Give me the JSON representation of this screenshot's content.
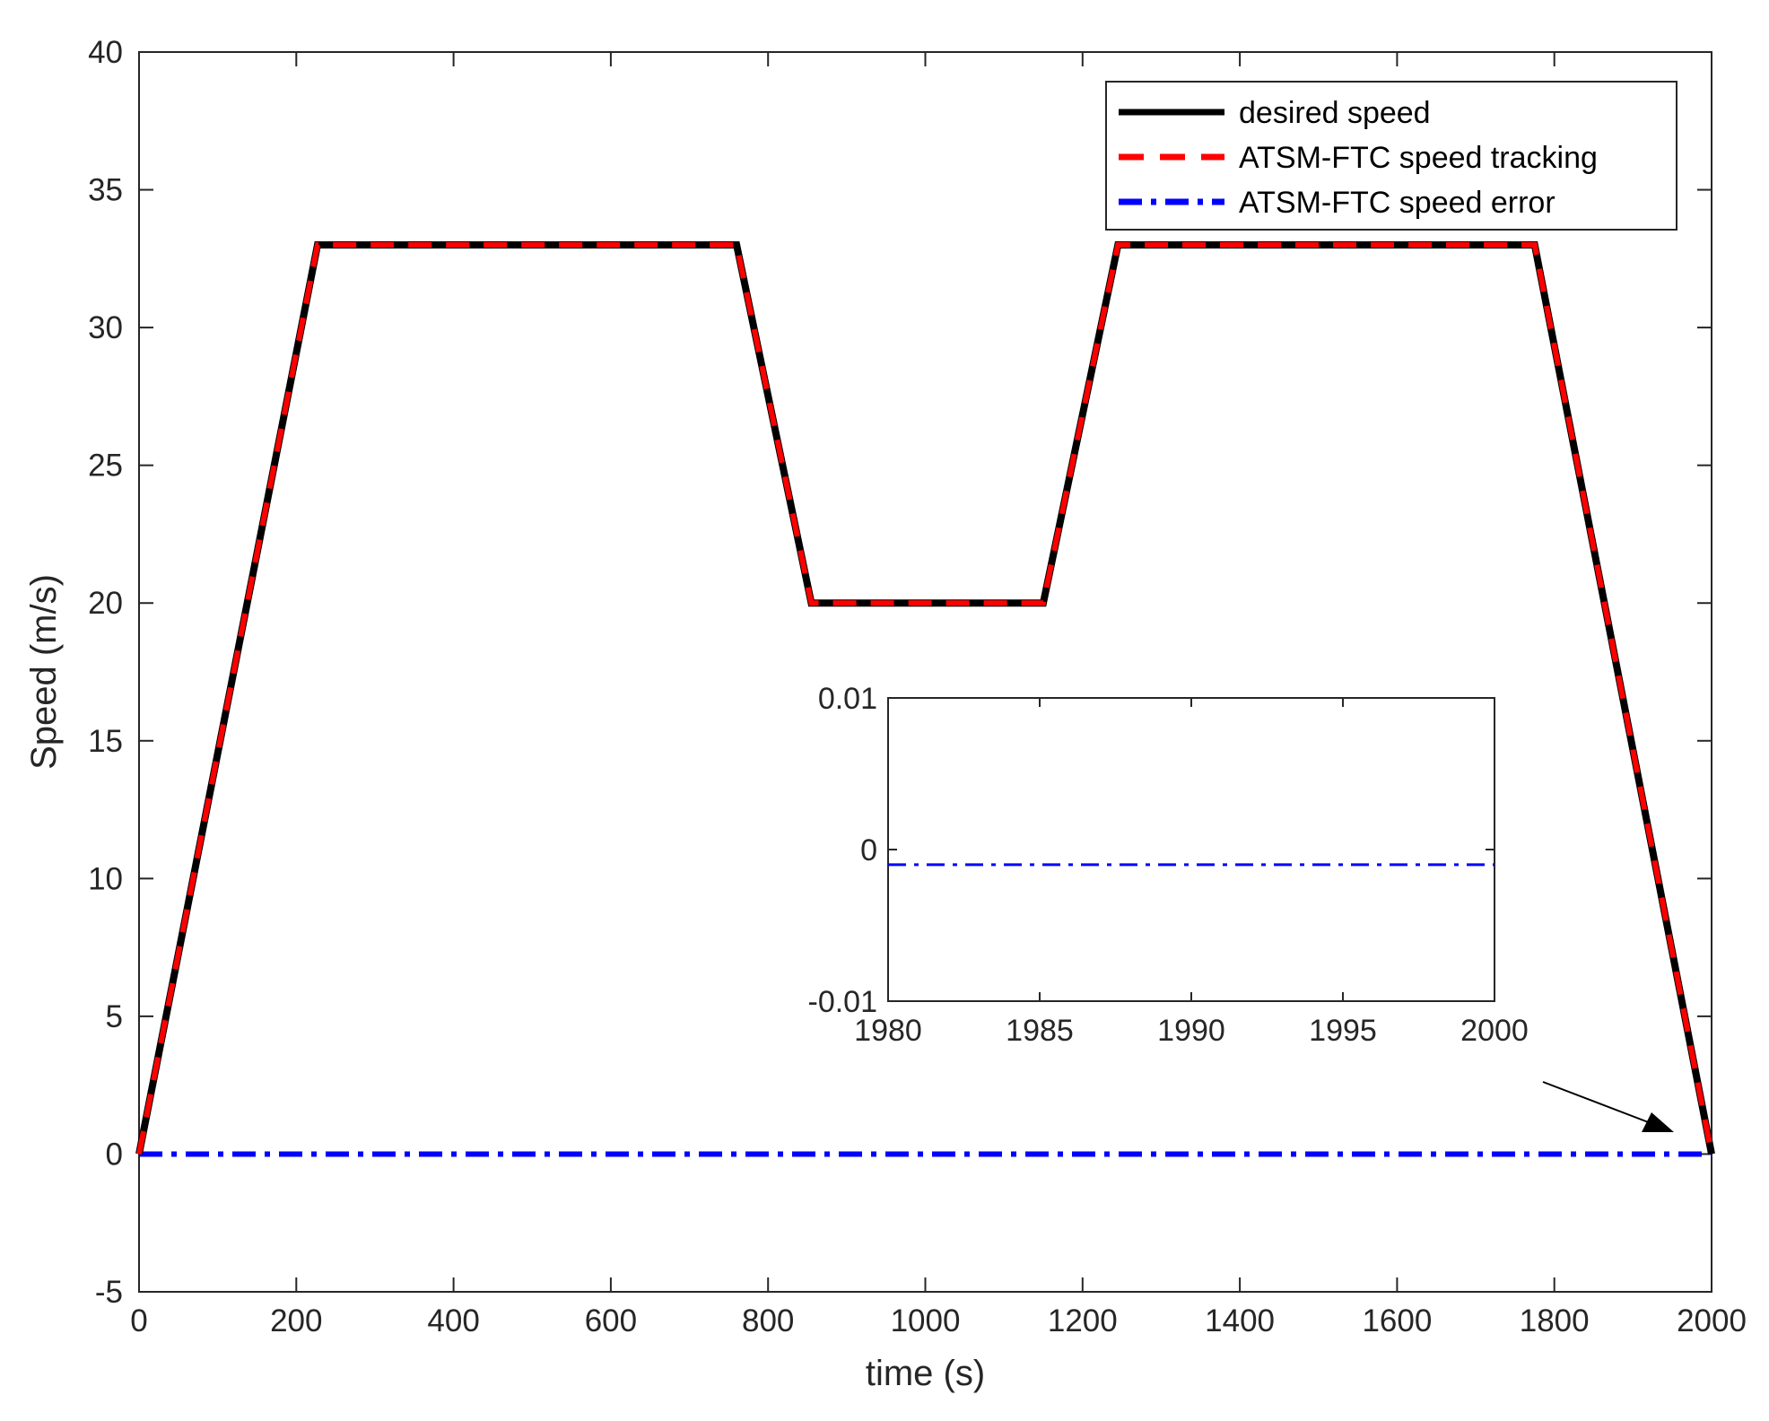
{
  "chart_data": {
    "type": "line",
    "xlabel": "time (s)",
    "ylabel": "Speed (m/s)",
    "xlim": [
      0,
      2000
    ],
    "ylim": [
      -5,
      40
    ],
    "xticks": [
      0,
      200,
      400,
      600,
      800,
      1000,
      1200,
      1400,
      1600,
      1800,
      2000
    ],
    "yticks": [
      -5,
      0,
      5,
      10,
      15,
      20,
      25,
      30,
      35,
      40
    ],
    "grid": false,
    "legend_position": "top-right",
    "series": [
      {
        "name": "desired speed",
        "color": "#000000",
        "style": "solid",
        "x": [
          0,
          227,
          760,
          855,
          1150,
          1245,
          1775,
          2000
        ],
        "y": [
          0,
          33,
          33,
          20,
          20,
          33,
          33,
          0
        ]
      },
      {
        "name": "ATSM-FTC speed tracking",
        "color": "#ff0000",
        "style": "dashed",
        "x": [
          0,
          227,
          760,
          855,
          1150,
          1245,
          1775,
          2000
        ],
        "y": [
          0,
          33,
          33,
          20,
          20,
          33,
          33,
          0
        ]
      },
      {
        "name": "ATSM-FTC speed error",
        "color": "#0000ff",
        "style": "dashdot",
        "x": [
          0,
          2000
        ],
        "y": [
          0,
          0
        ]
      }
    ],
    "inset": {
      "xlim": [
        1980,
        2000
      ],
      "ylim": [
        -0.01,
        0.01
      ],
      "xticks": [
        1980,
        1985,
        1990,
        1995,
        2000
      ],
      "yticks": [
        -0.01,
        0,
        0.01
      ],
      "xtick_labels": [
        "1980",
        "1985",
        "1990",
        "1995",
        "2000"
      ],
      "ytick_labels": [
        "-0.01",
        "0",
        "0.01"
      ],
      "series": [
        {
          "name": "ATSM-FTC speed error",
          "color": "#0000ff",
          "style": "dashdot",
          "x": [
            1980,
            2000
          ],
          "y": [
            -0.001,
            -0.001
          ]
        }
      ]
    }
  }
}
